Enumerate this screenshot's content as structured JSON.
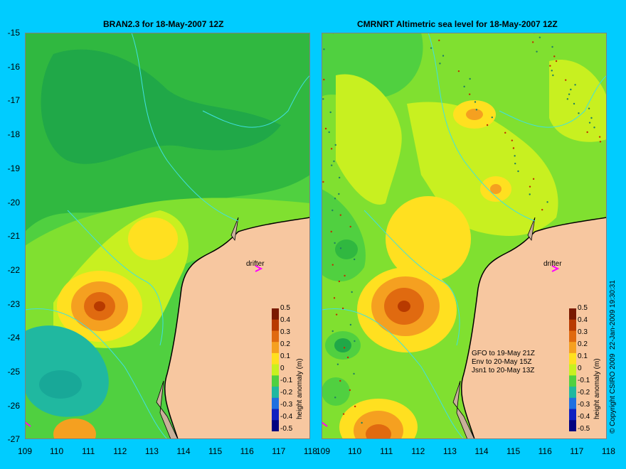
{
  "left_panel": {
    "title": "BRAN2.3 for 18-May-2007 12Z"
  },
  "right_panel": {
    "title": "CMRNRT Altimetric sea level  for 18-May-2007 12Z",
    "notes": [
      "GFO to 19-May 21Z",
      "Env to 20-May 15Z",
      "Jsn1 to 20-May 13Z"
    ]
  },
  "drifter_label": "drifter",
  "y_axis_labels": [
    "-15",
    "-16",
    "-17",
    "-18",
    "-19",
    "-20",
    "-21",
    "-22",
    "-23",
    "-24",
    "-25",
    "-26",
    "-27"
  ],
  "x_axis_labels": [
    "109",
    "110",
    "111",
    "112",
    "113",
    "114",
    "115",
    "116",
    "117",
    "118"
  ],
  "colorbar": {
    "title": "height anomaly (m)",
    "ticks": [
      "0.5",
      "0.4",
      "0.3",
      "0.2",
      "0.1",
      "0",
      "-0.1",
      "-0.2",
      "-0.3",
      "-0.4",
      "-0.5"
    ],
    "colors": [
      "#7a1a00",
      "#b83a00",
      "#e06a10",
      "#f5a020",
      "#ffe020",
      "#c8f020",
      "#50d040",
      "#20b8a0",
      "#2070e0",
      "#1020c0",
      "#000080"
    ]
  },
  "copyright": "© Copyright CSIRO 2009",
  "timestamp": "22-Jan-2009 19:30:31",
  "colors": {
    "background": "#00ccff",
    "land": "#f7c7a0",
    "coast_shelf": "#c8b09a",
    "contour": "#40e0e0",
    "drifter": "#ff00ff"
  }
}
